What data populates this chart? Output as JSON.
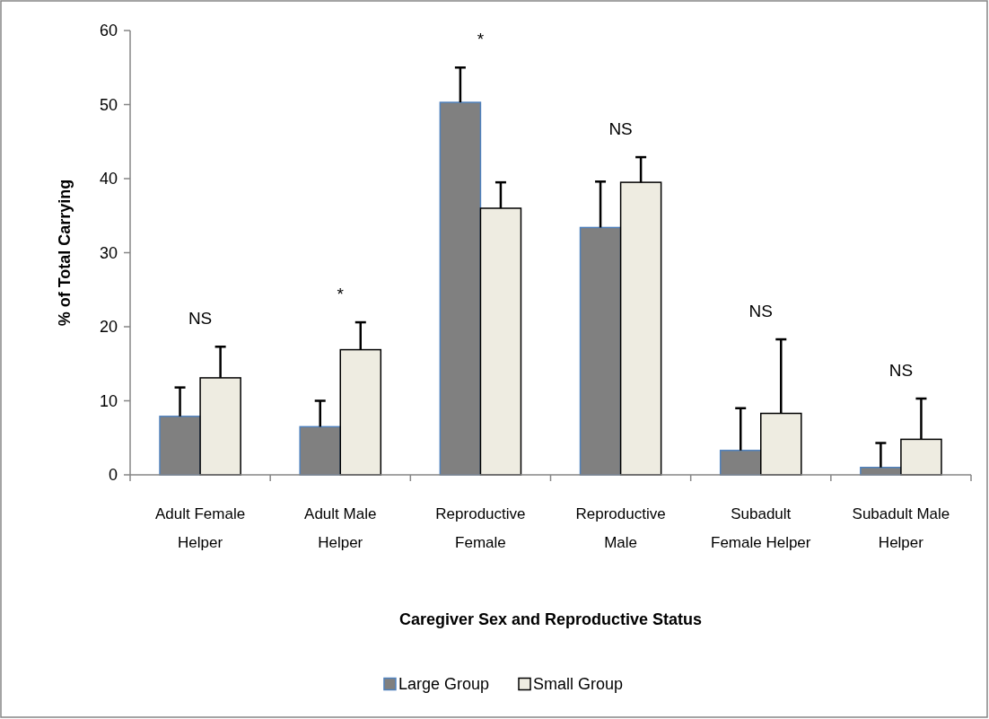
{
  "chart_data": {
    "type": "bar",
    "xlabel": "Caregiver Sex and Reproductive Status",
    "ylabel": "% of Total Carrying",
    "categories": [
      "Adult Female Helper",
      "Adult Male Helper",
      "Reproductive Female",
      "Reproductive Male",
      "Subadult Female Helper",
      "Subadult Male Helper"
    ],
    "series": [
      {
        "name": "Large Group",
        "color": "#808080",
        "values": [
          7.9,
          6.5,
          50.3,
          33.4,
          3.3,
          1.0
        ],
        "errors": [
          [
            7.9,
            11.8
          ],
          [
            6.5,
            10.0
          ],
          [
            50.3,
            55.0
          ],
          [
            33.4,
            39.6
          ],
          [
            3.3,
            9.0
          ],
          [
            1.0,
            4.3
          ]
        ]
      },
      {
        "name": "Small Group",
        "color": "#eeece1",
        "values": [
          13.1,
          16.9,
          36.0,
          39.5,
          8.3,
          4.8
        ],
        "errors": [
          [
            13.1,
            17.3
          ],
          [
            16.9,
            20.6
          ],
          [
            36.0,
            39.5
          ],
          [
            39.5,
            42.9
          ],
          [
            8.3,
            18.3
          ],
          [
            4.8,
            10.3
          ]
        ]
      }
    ],
    "ylim": [
      0,
      60
    ],
    "yticks": [
      0,
      10,
      20,
      30,
      40,
      50,
      60
    ],
    "legend": "bottom",
    "annotations": [
      "NS",
      "*",
      "*",
      "NS",
      "NS",
      "NS"
    ]
  }
}
